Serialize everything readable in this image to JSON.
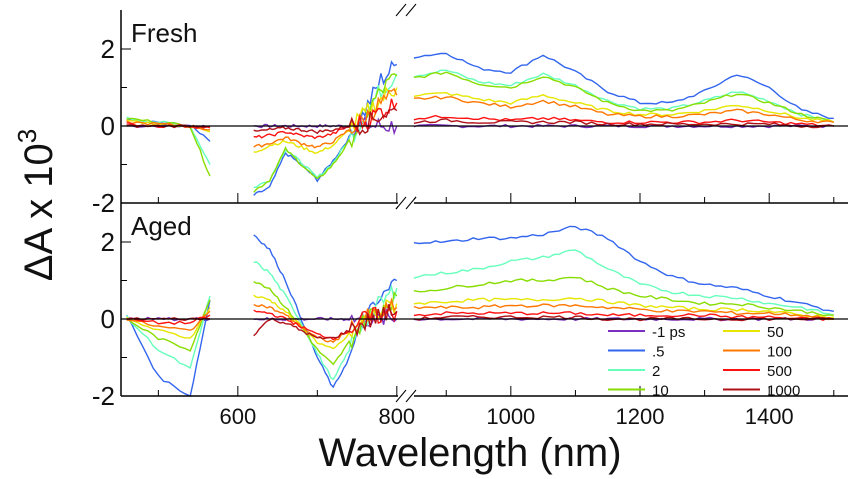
{
  "chart_data": {
    "type": "line",
    "xlabel": "Wavelength (nm)",
    "ylabel": "ΔA x 10",
    "ylabel_sup": "3",
    "xlim_left": [
      453,
      804
    ],
    "xlim_right": [
      847,
      1522
    ],
    "ylim": [
      -2,
      3
    ],
    "xticks": [
      600,
      800,
      1000,
      1200,
      1400
    ],
    "yticks": [
      2,
      0,
      -2
    ],
    "wavelengths": [
      460,
      500,
      540,
      565,
      620,
      640,
      660,
      680,
      700,
      720,
      740,
      760,
      780,
      800,
      850,
      900,
      950,
      1000,
      1050,
      1100,
      1150,
      1200,
      1250,
      1300,
      1350,
      1400,
      1450,
      1500
    ],
    "legend_placement": "bottom-right of lower panel",
    "legend_title": "",
    "panels": [
      {
        "label": "Fresh",
        "series": [
          {
            "name": "-1 ps",
            "color": "#7b2fbe",
            "values": [
              0,
              0,
              0,
              0,
              0,
              0,
              0,
              0,
              0,
              0,
              0,
              0,
              0,
              0,
              0,
              0,
              0,
              0,
              0,
              0,
              0,
              0,
              0,
              0,
              0,
              0,
              0,
              0
            ]
          },
          {
            "name": ".5",
            "color": "#3366ee",
            "values": [
              0.2,
              0.1,
              0,
              -0.4,
              -1.8,
              -1.6,
              -0.7,
              -1.0,
              -1.4,
              -0.9,
              -0.3,
              0.4,
              1.2,
              1.6,
              1.8,
              1.9,
              1.5,
              1.4,
              1.85,
              1.4,
              0.9,
              0.6,
              0.6,
              0.9,
              1.35,
              1.0,
              0.4,
              0.2
            ]
          },
          {
            "name": "2",
            "color": "#66ffbb",
            "values": [
              0.2,
              0.1,
              0,
              -1.0,
              -1.6,
              -1.4,
              -0.6,
              -0.95,
              -1.35,
              -0.95,
              -0.35,
              0.3,
              0.95,
              1.35,
              1.3,
              1.45,
              1.15,
              1.05,
              1.35,
              1.05,
              0.65,
              0.45,
              0.45,
              0.65,
              0.9,
              0.65,
              0.3,
              0.1
            ]
          },
          {
            "name": "10",
            "color": "#88dd00",
            "values": [
              0.2,
              0.1,
              0,
              -1.3,
              -1.7,
              -1.4,
              -0.6,
              -1.0,
              -1.4,
              -1.0,
              -0.4,
              0.3,
              0.9,
              1.3,
              1.25,
              1.4,
              1.1,
              1.0,
              1.3,
              1.0,
              0.6,
              0.4,
              0.4,
              0.6,
              0.85,
              0.6,
              0.3,
              0.1
            ]
          },
          {
            "name": "50",
            "color": "#e6e600",
            "values": [
              0.15,
              0.05,
              0,
              -0.15,
              -0.7,
              -0.5,
              -0.4,
              -0.55,
              -0.7,
              -0.5,
              -0.1,
              0.3,
              0.7,
              1.0,
              0.8,
              0.85,
              0.7,
              0.6,
              0.8,
              0.6,
              0.4,
              0.3,
              0.3,
              0.4,
              0.55,
              0.4,
              0.2,
              0.1
            ]
          },
          {
            "name": "100",
            "color": "#ff7700",
            "values": [
              0.1,
              0.05,
              0,
              -0.1,
              -0.55,
              -0.45,
              -0.3,
              -0.45,
              -0.55,
              -0.4,
              -0.1,
              0.2,
              0.6,
              0.8,
              0.7,
              0.75,
              0.6,
              0.5,
              0.65,
              0.5,
              0.3,
              0.25,
              0.25,
              0.3,
              0.4,
              0.3,
              0.15,
              0.1
            ]
          },
          {
            "name": "500",
            "color": "#ff1111",
            "values": [
              0.05,
              0,
              0,
              -0.05,
              -0.3,
              -0.25,
              -0.15,
              -0.25,
              -0.3,
              -0.2,
              0,
              0.1,
              0.4,
              0.6,
              0.2,
              0.25,
              0.2,
              0.15,
              0.2,
              0.15,
              0.1,
              0.1,
              0.1,
              0.1,
              0.15,
              0.1,
              0.05,
              0
            ]
          },
          {
            "name": "1000",
            "color": "#b01018",
            "values": [
              0,
              0,
              0,
              0,
              -0.15,
              -0.1,
              -0.05,
              -0.1,
              -0.15,
              -0.1,
              0,
              0.05,
              0.3,
              0.4,
              0.1,
              0.15,
              0.1,
              0.1,
              0.1,
              0.1,
              0.05,
              0.05,
              0.05,
              0.05,
              0.05,
              0.05,
              0,
              0
            ]
          }
        ]
      },
      {
        "label": "Aged",
        "series": [
          {
            "name": "-1 ps",
            "color": "#7b2fbe",
            "values": [
              0,
              0,
              0,
              0,
              0,
              0,
              0,
              0,
              0,
              0,
              0,
              0,
              0,
              0,
              0,
              0,
              0,
              0,
              0,
              0,
              0,
              0,
              0,
              0,
              0,
              0,
              0,
              0
            ]
          },
          {
            "name": ".5",
            "color": "#3366ee",
            "values": [
              0.1,
              -1.5,
              -2.0,
              0.5,
              2.2,
              1.8,
              1.0,
              0,
              -1.0,
              -1.8,
              -1.0,
              0,
              0.5,
              1.0,
              2.0,
              2.0,
              2.1,
              2.1,
              2.2,
              2.4,
              2.1,
              1.5,
              1.1,
              0.9,
              0.8,
              0.6,
              0.4,
              0.2
            ]
          },
          {
            "name": "2",
            "color": "#66ffbb",
            "values": [
              0.05,
              -0.8,
              -1.3,
              0.6,
              1.5,
              1.2,
              0.6,
              -0.1,
              -0.9,
              -1.6,
              -0.8,
              0,
              0.4,
              0.8,
              1.1,
              1.2,
              1.3,
              1.5,
              1.6,
              1.8,
              1.3,
              0.9,
              0.7,
              0.6,
              0.55,
              0.4,
              0.3,
              0.1
            ]
          },
          {
            "name": "10",
            "color": "#88dd00",
            "values": [
              0,
              -0.5,
              -0.8,
              0.5,
              1.0,
              0.8,
              0.3,
              -0.2,
              -0.8,
              -1.2,
              -0.6,
              0,
              0.3,
              0.6,
              0.7,
              0.8,
              0.9,
              1.0,
              1.0,
              1.1,
              0.8,
              0.6,
              0.5,
              0.4,
              0.4,
              0.3,
              0.2,
              0.1
            ]
          },
          {
            "name": "50",
            "color": "#e6e600",
            "values": [
              0,
              -0.3,
              -0.5,
              0.3,
              0.6,
              0.5,
              0.2,
              -0.2,
              -0.6,
              -0.8,
              -0.4,
              0,
              0.2,
              0.4,
              0.4,
              0.45,
              0.5,
              0.5,
              0.5,
              0.55,
              0.45,
              0.35,
              0.3,
              0.25,
              0.25,
              0.2,
              0.1,
              0.05
            ]
          },
          {
            "name": "100",
            "color": "#ff7700",
            "values": [
              0,
              -0.2,
              -0.3,
              0.2,
              0.4,
              0.3,
              0.1,
              -0.2,
              -0.5,
              -0.6,
              -0.3,
              0,
              0.15,
              0.3,
              0.3,
              0.3,
              0.3,
              0.35,
              0.35,
              0.35,
              0.3,
              0.25,
              0.2,
              0.2,
              0.15,
              0.15,
              0.1,
              0
            ]
          },
          {
            "name": "500",
            "color": "#ff1111",
            "values": [
              0,
              -0.1,
              -0.1,
              0.1,
              0.2,
              0.15,
              0,
              -0.2,
              -0.4,
              -0.5,
              -0.3,
              0,
              0.1,
              0.2,
              0.1,
              0.15,
              0.15,
              0.15,
              0.15,
              0.15,
              0.1,
              0.1,
              0.1,
              0.1,
              0.05,
              0.05,
              0,
              0
            ]
          },
          {
            "name": "1000",
            "color": "#b01018",
            "values": [
              0,
              0,
              0,
              0,
              -0.4,
              0,
              -0.1,
              -0.3,
              -0.5,
              -0.5,
              -0.3,
              -0.1,
              0.1,
              0.2,
              0,
              0.05,
              0.05,
              0.05,
              0.05,
              0.05,
              0,
              0,
              0,
              0,
              0,
              0,
              0,
              0
            ]
          }
        ]
      }
    ]
  }
}
